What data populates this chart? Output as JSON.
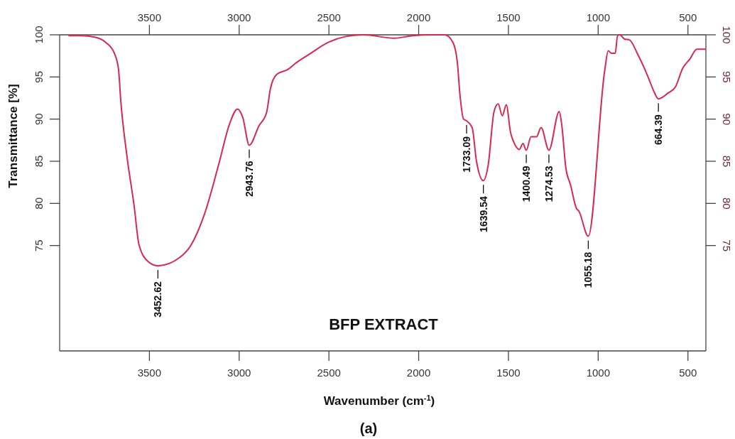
{
  "chart_data": {
    "type": "line",
    "title": "BFP EXTRACT",
    "xlabel": "Wavenumber (cm$^{-1}$)",
    "ylabel": "Transmittance [%]",
    "xlim": [
      4000,
      400
    ],
    "xticks": [
      3500,
      3000,
      2500,
      2000,
      1500,
      1000,
      500
    ],
    "x2lim": [
      4000,
      400
    ],
    "x2ticks": [
      3500,
      3000,
      2500,
      2000,
      1500,
      1000,
      500
    ],
    "ylim": [
      62.5,
      100
    ],
    "yticks": [
      75,
      80,
      85,
      90,
      95,
      100
    ],
    "y2lim": [
      62.5,
      100
    ],
    "y2ticks": [
      75,
      80,
      85,
      90,
      95,
      100
    ],
    "series": [
      {
        "color": "#d8284f",
        "x": [
          3951,
          3880,
          3800,
          3743,
          3695,
          3672,
          3660,
          3625,
          3585,
          3558,
          3507,
          3452.62,
          3330,
          3270,
          3192,
          3113,
          3054,
          3009,
          2980,
          2943.76,
          2890,
          2847,
          2826,
          2791,
          2728,
          2681,
          2602,
          2504,
          2406,
          2307,
          2137,
          2032,
          1927,
          1855,
          1809,
          1785,
          1770,
          1750,
          1733.09,
          1702,
          1678,
          1639.54,
          1613,
          1580,
          1557,
          1534,
          1512,
          1488,
          1471,
          1439,
          1419,
          1400.49,
          1374,
          1344,
          1318,
          1274.53,
          1217,
          1204,
          1180,
          1154,
          1121,
          1108,
          1055.18,
          964,
          944,
          925,
          905,
          892,
          879,
          853,
          826,
          780,
          720,
          690,
          664.39,
          610,
          570,
          530,
          490,
          450,
          400
        ],
        "values": [
          99.9,
          99.9,
          99.7,
          99.1,
          97.8,
          95.9,
          92.3,
          85.6,
          79.7,
          75.1,
          73.1,
          72.6,
          73.6,
          75.0,
          78.8,
          84.7,
          89.4,
          91.2,
          90.2,
          86.9,
          89.2,
          90.8,
          93.6,
          95.3,
          95.9,
          96.7,
          97.8,
          99.1,
          99.8,
          100,
          99.6,
          99.9,
          100,
          100,
          99.1,
          96.8,
          92.9,
          90.0,
          89.8,
          89.0,
          85.0,
          82.7,
          84.5,
          90.9,
          91.8,
          90.4,
          91.7,
          88.4,
          87.3,
          86.4,
          87.1,
          86.3,
          87.9,
          87.9,
          89.0,
          86.3,
          90.9,
          89.5,
          84.2,
          82.2,
          79.4,
          79.1,
          76.1,
          95.7,
          98.1,
          97.8,
          97.8,
          99.9,
          100,
          99.5,
          99.4,
          97.7,
          94.9,
          93.3,
          92.4,
          93.1,
          93.8,
          96.0,
          97.1,
          98.3,
          98.3
        ]
      }
    ],
    "annotations": [
      {
        "text": "3452.62",
        "x": 3452.62,
        "y": 72.6
      },
      {
        "text": "2943.76",
        "x": 2943.76,
        "y": 86.9
      },
      {
        "text": "1733.09",
        "x": 1733.09,
        "y": 89.8
      },
      {
        "text": "1639.54",
        "x": 1639.54,
        "y": 82.7
      },
      {
        "text": "1400.49",
        "x": 1400.49,
        "y": 86.3
      },
      {
        "text": "1274.53",
        "x": 1274.53,
        "y": 86.3
      },
      {
        "text": "1055.18",
        "x": 1055.18,
        "y": 76.1
      },
      {
        "text": "664.39",
        "x": 664.39,
        "y": 92.4
      },
      "(a)"
    ]
  }
}
